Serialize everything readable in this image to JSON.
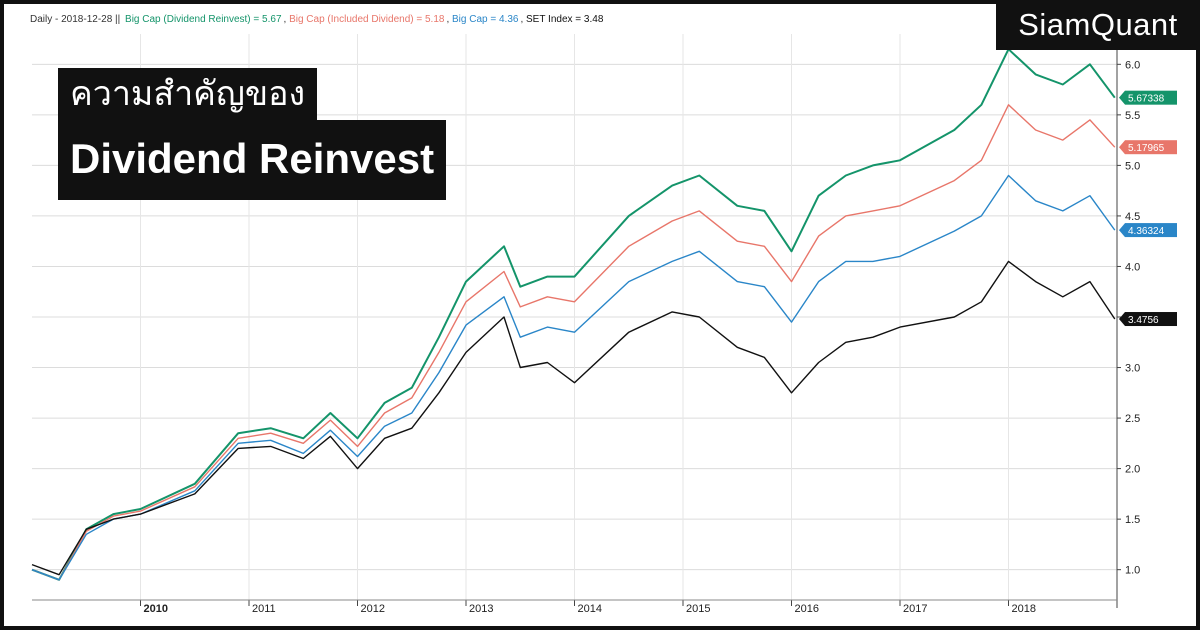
{
  "header": {
    "legend_prefix": "Daily - 2018-12-28 ||",
    "brand": "SiamQuant"
  },
  "title": {
    "line1": "ความสำคัญของ",
    "line2": "Dividend Reinvest"
  },
  "chart_data": {
    "type": "line",
    "title": "",
    "xlabel": "",
    "ylabel": "",
    "ylim": [
      0.7,
      6.3
    ],
    "xlim": [
      2009.0,
      2019.0
    ],
    "y_ticks": [
      1.0,
      1.5,
      2.0,
      2.5,
      3.0,
      3.5,
      4.0,
      4.5,
      5.0,
      5.5,
      6.0
    ],
    "y_tick_labels": [
      "1.0",
      "1.5",
      "2.0",
      "2.5",
      "3.0",
      "3.5",
      "4.0",
      "4.5",
      "5.0",
      "5.5",
      "6.0"
    ],
    "x_ticks": [
      2010,
      2011,
      2012,
      2013,
      2014,
      2015,
      2016,
      2017,
      2018
    ],
    "x_tick_labels": [
      "2010",
      "2011",
      "2012",
      "2013",
      "2014",
      "2015",
      "2016",
      "2017",
      "2018"
    ],
    "grid": true,
    "legend_position": "top-left",
    "series": [
      {
        "name": "Big Cap (Dividend Reinvest)",
        "legend_text": "Big Cap (Dividend Reinvest) = 5.67",
        "last_value_label": "5.67338",
        "color": "#14946a",
        "x": [
          2009.0,
          2009.25,
          2009.5,
          2009.75,
          2010.0,
          2010.5,
          2010.9,
          2011.2,
          2011.5,
          2011.75,
          2012.0,
          2012.25,
          2012.5,
          2012.75,
          2013.0,
          2013.35,
          2013.5,
          2013.75,
          2014.0,
          2014.5,
          2014.9,
          2015.15,
          2015.5,
          2015.75,
          2016.0,
          2016.25,
          2016.5,
          2016.75,
          2017.0,
          2017.5,
          2017.75,
          2018.0,
          2018.25,
          2018.5,
          2018.75,
          2018.98
        ],
        "y": [
          1.0,
          0.9,
          1.4,
          1.55,
          1.6,
          1.85,
          2.35,
          2.4,
          2.3,
          2.55,
          2.3,
          2.65,
          2.8,
          3.3,
          3.85,
          4.2,
          3.8,
          3.9,
          3.9,
          4.5,
          4.8,
          4.9,
          4.6,
          4.55,
          4.15,
          4.7,
          4.9,
          5.0,
          5.05,
          5.35,
          5.6,
          6.15,
          5.9,
          5.8,
          6.0,
          5.67
        ]
      },
      {
        "name": "Big Cap (Included Dividend)",
        "legend_text": "Big Cap (Included Dividend) = 5.18",
        "last_value_label": "5.17965",
        "color": "#e8766a",
        "x": [
          2009.0,
          2009.25,
          2009.5,
          2009.75,
          2010.0,
          2010.5,
          2010.9,
          2011.2,
          2011.5,
          2011.75,
          2012.0,
          2012.25,
          2012.5,
          2012.75,
          2013.0,
          2013.35,
          2013.5,
          2013.75,
          2014.0,
          2014.5,
          2014.9,
          2015.15,
          2015.5,
          2015.75,
          2016.0,
          2016.25,
          2016.5,
          2016.75,
          2017.0,
          2017.5,
          2017.75,
          2018.0,
          2018.25,
          2018.5,
          2018.75,
          2018.98
        ],
        "y": [
          1.0,
          0.9,
          1.38,
          1.53,
          1.58,
          1.82,
          2.3,
          2.35,
          2.25,
          2.48,
          2.22,
          2.55,
          2.7,
          3.15,
          3.65,
          3.95,
          3.6,
          3.7,
          3.65,
          4.2,
          4.45,
          4.55,
          4.25,
          4.2,
          3.85,
          4.3,
          4.5,
          4.55,
          4.6,
          4.85,
          5.05,
          5.6,
          5.35,
          5.25,
          5.45,
          5.18
        ]
      },
      {
        "name": "Big Cap",
        "legend_text": "Big Cap = 4.36",
        "last_value_label": "4.36324",
        "color": "#2a86c8",
        "x": [
          2009.0,
          2009.25,
          2009.5,
          2009.75,
          2010.0,
          2010.5,
          2010.9,
          2011.2,
          2011.5,
          2011.75,
          2012.0,
          2012.25,
          2012.5,
          2012.75,
          2013.0,
          2013.35,
          2013.5,
          2013.75,
          2014.0,
          2014.5,
          2014.9,
          2015.15,
          2015.5,
          2015.75,
          2016.0,
          2016.25,
          2016.5,
          2016.75,
          2017.0,
          2017.5,
          2017.75,
          2018.0,
          2018.25,
          2018.5,
          2018.75,
          2018.98
        ],
        "y": [
          1.0,
          0.9,
          1.35,
          1.5,
          1.55,
          1.78,
          2.25,
          2.28,
          2.15,
          2.38,
          2.12,
          2.42,
          2.55,
          2.95,
          3.42,
          3.7,
          3.3,
          3.4,
          3.35,
          3.85,
          4.05,
          4.15,
          3.85,
          3.8,
          3.45,
          3.85,
          4.05,
          4.05,
          4.1,
          4.35,
          4.5,
          4.9,
          4.65,
          4.55,
          4.7,
          4.36
        ]
      },
      {
        "name": "SET Index",
        "legend_text": "SET Index = 3.48",
        "last_value_label": "3.4756",
        "color": "#111111",
        "x": [
          2009.0,
          2009.25,
          2009.5,
          2009.75,
          2010.0,
          2010.5,
          2010.9,
          2011.2,
          2011.5,
          2011.75,
          2012.0,
          2012.25,
          2012.5,
          2012.75,
          2013.0,
          2013.35,
          2013.5,
          2013.75,
          2014.0,
          2014.5,
          2014.9,
          2015.15,
          2015.5,
          2015.75,
          2016.0,
          2016.25,
          2016.5,
          2016.75,
          2017.0,
          2017.5,
          2017.75,
          2018.0,
          2018.25,
          2018.5,
          2018.75,
          2018.98
        ],
        "y": [
          1.05,
          0.95,
          1.4,
          1.5,
          1.55,
          1.75,
          2.2,
          2.22,
          2.1,
          2.32,
          2.0,
          2.3,
          2.4,
          2.75,
          3.15,
          3.5,
          3.0,
          3.05,
          2.85,
          3.35,
          3.55,
          3.5,
          3.2,
          3.1,
          2.75,
          3.05,
          3.25,
          3.3,
          3.4,
          3.5,
          3.65,
          4.05,
          3.85,
          3.7,
          3.85,
          3.48
        ]
      }
    ]
  }
}
